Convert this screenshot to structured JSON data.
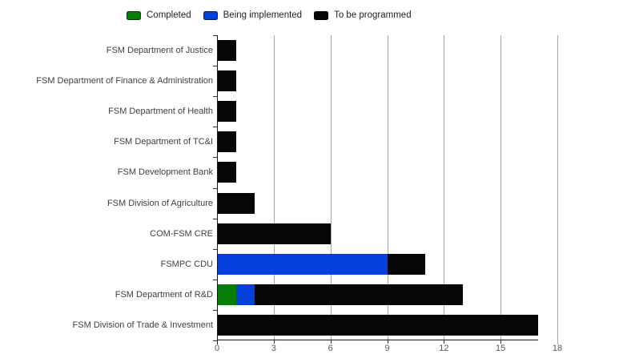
{
  "chart_data": {
    "type": "bar",
    "orientation": "horizontal",
    "stacked": true,
    "title": "",
    "legend_position": "top",
    "grid": "vertical",
    "categories": [
      "FSM Department of Justice",
      "FSM Department of Finance & Administration",
      "FSM Department of Health",
      "FSM Department of TC&I",
      "FSM Development Bank",
      "FSM Division of Agriculture",
      "COM-FSM CRE",
      "FSMPC CDU",
      "FSM Department of R&D",
      "FSM Division of Trade & Investment"
    ],
    "series": [
      {
        "name": "Completed",
        "color": "#077d07",
        "values": [
          0,
          0,
          0,
          0,
          0,
          0,
          0,
          0,
          1,
          0
        ]
      },
      {
        "name": "Being implemented",
        "color": "#0540db",
        "values": [
          0,
          0,
          0,
          0,
          0,
          0,
          0,
          9,
          1,
          0
        ]
      },
      {
        "name": "To be programmed",
        "color": "#060608",
        "values": [
          1,
          1,
          1,
          1,
          1,
          2,
          6,
          2,
          11,
          17
        ]
      }
    ],
    "totals": [
      1,
      1,
      1,
      1,
      1,
      2,
      6,
      11,
      13,
      17
    ],
    "x_axis": {
      "ticks": [
        0,
        3,
        6,
        9,
        12,
        15,
        18
      ],
      "min": 0,
      "max": 18
    },
    "colors": {
      "gridline": "#a6a6a6",
      "axis": "#161616",
      "category_label": "#404040",
      "tick_label": "#595959"
    }
  }
}
